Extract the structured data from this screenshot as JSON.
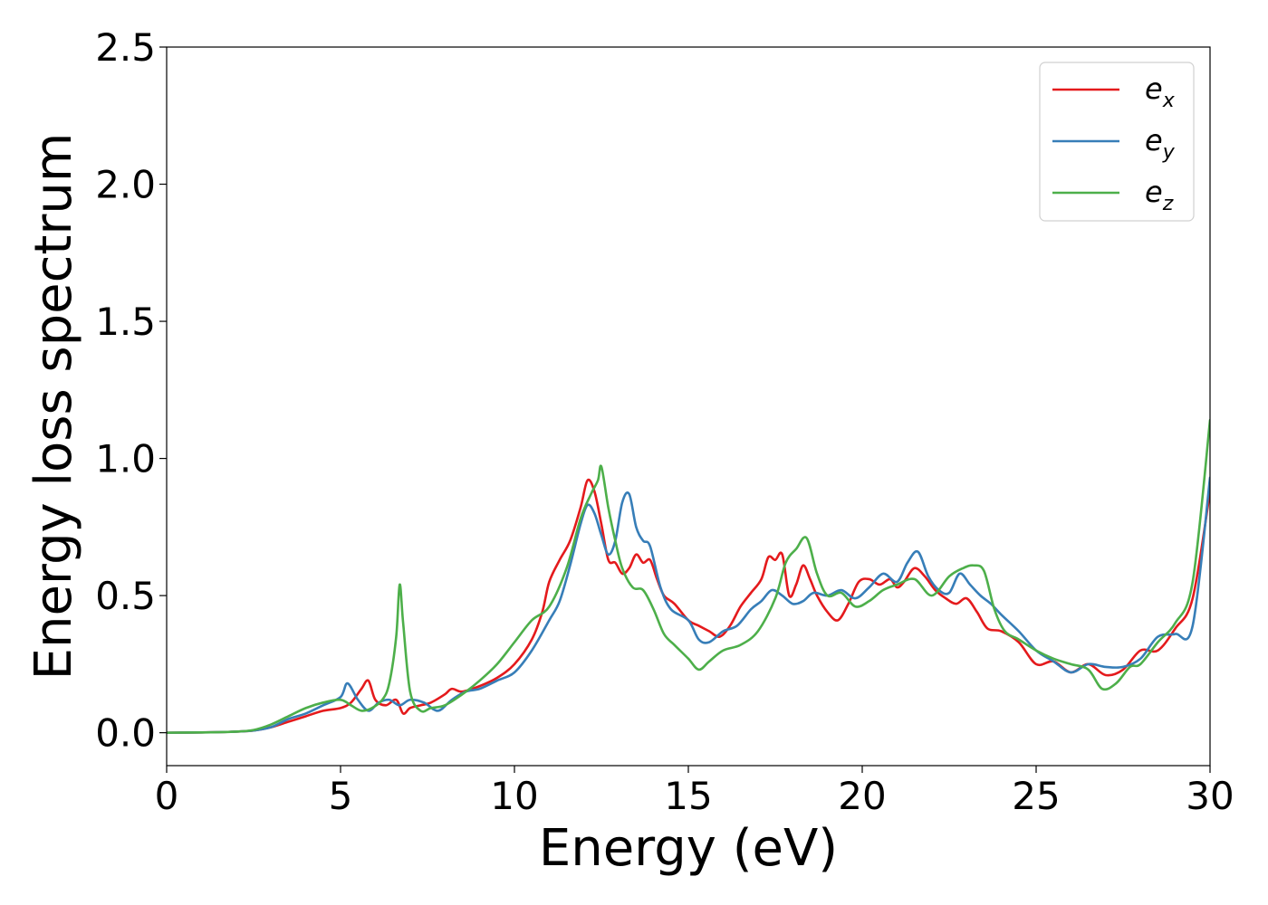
{
  "chart_data": {
    "type": "line",
    "title": "",
    "xlabel": "Energy (eV)",
    "ylabel": "Energy loss spectrum",
    "xlim": [
      0,
      30
    ],
    "ylim": [
      -0.12,
      2.5
    ],
    "xticks": [
      0,
      5,
      10,
      15,
      20,
      25,
      30
    ],
    "yticks": [
      0.0,
      0.5,
      1.0,
      1.5,
      2.0,
      2.5
    ],
    "xtick_labels": [
      "0",
      "5",
      "10",
      "15",
      "20",
      "25",
      "30"
    ],
    "ytick_labels": [
      "0.0",
      "0.5",
      "1.0",
      "1.5",
      "2.0",
      "2.5"
    ],
    "grid": false,
    "legend_position": "top-right",
    "series": [
      {
        "name": "e_x",
        "legend_base": "e",
        "legend_sub": "x",
        "color": "#e41a1c",
        "x": [
          0,
          1,
          2,
          2.5,
          3,
          3.5,
          4,
          4.5,
          5,
          5.3,
          5.6,
          5.8,
          6.0,
          6.3,
          6.6,
          6.8,
          7.0,
          7.3,
          7.6,
          8.0,
          8.2,
          8.5,
          9.0,
          9.5,
          10.0,
          10.5,
          10.8,
          11.0,
          11.3,
          11.6,
          11.9,
          12.1,
          12.3,
          12.5,
          12.7,
          12.9,
          13.1,
          13.3,
          13.5,
          13.7,
          13.9,
          14.1,
          14.3,
          14.6,
          15.0,
          15.3,
          15.6,
          15.9,
          16.2,
          16.5,
          16.8,
          17.1,
          17.3,
          17.5,
          17.7,
          17.9,
          18.1,
          18.3,
          18.5,
          18.7,
          19.0,
          19.3,
          19.6,
          19.9,
          20.2,
          20.5,
          20.8,
          21.0,
          21.2,
          21.5,
          21.8,
          22.1,
          22.4,
          22.7,
          23.0,
          23.3,
          23.6,
          24.0,
          24.5,
          25.0,
          25.5,
          26.0,
          26.5,
          27.0,
          27.5,
          28.0,
          28.5,
          29.0,
          29.5,
          30.0
        ],
        "y": [
          0.0,
          0.001,
          0.004,
          0.008,
          0.02,
          0.04,
          0.06,
          0.08,
          0.09,
          0.11,
          0.16,
          0.19,
          0.12,
          0.1,
          0.12,
          0.07,
          0.09,
          0.1,
          0.11,
          0.14,
          0.16,
          0.15,
          0.17,
          0.2,
          0.25,
          0.34,
          0.44,
          0.55,
          0.63,
          0.7,
          0.82,
          0.92,
          0.88,
          0.76,
          0.63,
          0.62,
          0.58,
          0.6,
          0.65,
          0.62,
          0.63,
          0.56,
          0.5,
          0.47,
          0.41,
          0.39,
          0.37,
          0.35,
          0.39,
          0.46,
          0.51,
          0.56,
          0.64,
          0.63,
          0.65,
          0.5,
          0.54,
          0.61,
          0.56,
          0.5,
          0.44,
          0.41,
          0.47,
          0.55,
          0.56,
          0.54,
          0.56,
          0.53,
          0.55,
          0.6,
          0.57,
          0.52,
          0.49,
          0.47,
          0.49,
          0.44,
          0.38,
          0.37,
          0.33,
          0.25,
          0.26,
          0.22,
          0.25,
          0.21,
          0.23,
          0.3,
          0.3,
          0.38,
          0.49,
          0.88
        ]
      },
      {
        "name": "e_y",
        "legend_base": "e",
        "legend_sub": "y",
        "color": "#377eb8",
        "x": [
          0,
          1,
          2,
          2.5,
          3,
          3.5,
          4,
          4.5,
          5,
          5.2,
          5.5,
          5.8,
          6.1,
          6.4,
          6.7,
          7.0,
          7.4,
          7.8,
          8.2,
          8.6,
          9.0,
          9.5,
          10.0,
          10.5,
          11.0,
          11.3,
          11.6,
          11.9,
          12.1,
          12.3,
          12.5,
          12.7,
          12.9,
          13.1,
          13.3,
          13.5,
          13.7,
          13.9,
          14.2,
          14.5,
          15.0,
          15.3,
          15.6,
          16.0,
          16.4,
          16.8,
          17.1,
          17.4,
          17.7,
          18.0,
          18.3,
          18.6,
          19.0,
          19.4,
          19.8,
          20.2,
          20.6,
          21.0,
          21.3,
          21.6,
          21.9,
          22.2,
          22.5,
          22.8,
          23.1,
          23.4,
          23.7,
          24.0,
          24.5,
          25.0,
          25.5,
          26.0,
          26.5,
          27.0,
          27.5,
          28.0,
          28.5,
          29.0,
          29.5,
          30.0
        ],
        "y": [
          0.0,
          0.001,
          0.004,
          0.008,
          0.02,
          0.05,
          0.07,
          0.1,
          0.13,
          0.18,
          0.12,
          0.08,
          0.11,
          0.12,
          0.1,
          0.12,
          0.11,
          0.08,
          0.12,
          0.15,
          0.16,
          0.19,
          0.22,
          0.3,
          0.41,
          0.48,
          0.61,
          0.76,
          0.83,
          0.8,
          0.72,
          0.65,
          0.7,
          0.84,
          0.87,
          0.75,
          0.7,
          0.68,
          0.53,
          0.45,
          0.41,
          0.34,
          0.33,
          0.37,
          0.39,
          0.45,
          0.48,
          0.52,
          0.5,
          0.47,
          0.48,
          0.51,
          0.5,
          0.52,
          0.49,
          0.53,
          0.58,
          0.55,
          0.62,
          0.66,
          0.57,
          0.52,
          0.51,
          0.58,
          0.54,
          0.5,
          0.47,
          0.43,
          0.37,
          0.3,
          0.26,
          0.22,
          0.25,
          0.24,
          0.24,
          0.27,
          0.35,
          0.36,
          0.39,
          0.93
        ]
      },
      {
        "name": "e_z",
        "legend_base": "e",
        "legend_sub": "z",
        "color": "#4daf4a",
        "x": [
          0,
          1,
          2,
          2.5,
          3,
          3.5,
          4,
          4.5,
          5,
          5.3,
          5.6,
          5.9,
          6.2,
          6.4,
          6.6,
          6.7,
          6.8,
          7.0,
          7.3,
          7.6,
          8.0,
          8.5,
          9.0,
          9.5,
          10.0,
          10.5,
          11.0,
          11.5,
          11.9,
          12.2,
          12.4,
          12.5,
          12.7,
          12.9,
          13.1,
          13.4,
          13.7,
          14.0,
          14.3,
          14.6,
          15.0,
          15.3,
          15.6,
          16.0,
          16.5,
          17.0,
          17.5,
          17.8,
          18.1,
          18.4,
          18.7,
          19.0,
          19.4,
          19.8,
          20.2,
          20.6,
          21.0,
          21.5,
          22.0,
          22.5,
          22.9,
          23.2,
          23.5,
          23.8,
          24.1,
          24.5,
          25.0,
          25.5,
          26.0,
          26.5,
          26.9,
          27.3,
          27.7,
          28.0,
          28.5,
          29.0,
          29.5,
          30.0
        ],
        "y": [
          0.0,
          0.001,
          0.004,
          0.01,
          0.03,
          0.06,
          0.09,
          0.11,
          0.12,
          0.1,
          0.08,
          0.09,
          0.12,
          0.18,
          0.35,
          0.54,
          0.4,
          0.15,
          0.08,
          0.09,
          0.1,
          0.14,
          0.19,
          0.25,
          0.33,
          0.41,
          0.46,
          0.6,
          0.78,
          0.87,
          0.92,
          0.97,
          0.82,
          0.7,
          0.6,
          0.53,
          0.52,
          0.45,
          0.36,
          0.32,
          0.27,
          0.23,
          0.26,
          0.3,
          0.32,
          0.37,
          0.49,
          0.62,
          0.67,
          0.71,
          0.58,
          0.5,
          0.51,
          0.46,
          0.48,
          0.52,
          0.54,
          0.56,
          0.5,
          0.57,
          0.6,
          0.61,
          0.59,
          0.45,
          0.37,
          0.34,
          0.3,
          0.27,
          0.25,
          0.23,
          0.16,
          0.18,
          0.24,
          0.25,
          0.33,
          0.4,
          0.55,
          1.14
        ]
      }
    ]
  }
}
